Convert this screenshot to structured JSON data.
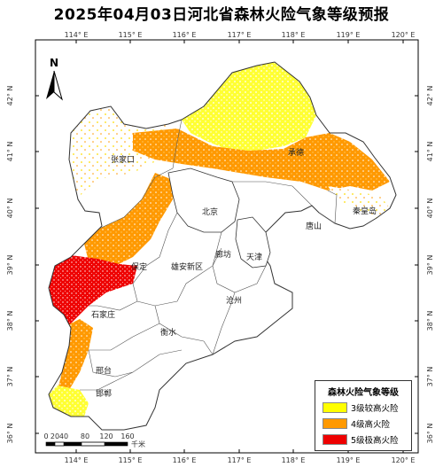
{
  "title": "2025年04月03日河北省森林火险气象等级预报",
  "lon_ticks": [
    "114° E",
    "115° E",
    "116° E",
    "117° E",
    "118° E",
    "119° E",
    "120° E"
  ],
  "lat_ticks": [
    "42° N",
    "41° N",
    "40° N",
    "39° N",
    "38° N",
    "37° N",
    "36° N"
  ],
  "north_label": "N",
  "cities": {
    "zhangjiakou": "张家口",
    "chengde": "承德",
    "beijing": "北京",
    "qinhuangdao": "秦皇岛",
    "tangshan": "唐山",
    "tianjin": "天津",
    "langfang": "廊坊",
    "baoding": "保定",
    "xiongan": "雄安新区",
    "cangzhou": "沧州",
    "shijiazhuang": "石家庄",
    "hengshui": "衡水",
    "xingtai": "邢台",
    "handan": "邯郸"
  },
  "scale": {
    "labels": [
      "0",
      "20",
      "40",
      "80",
      "120",
      "160"
    ],
    "unit": "千米"
  },
  "legend": {
    "title": "森林火险气象等级",
    "items": [
      {
        "label": "3级较高火险",
        "color": "#ffff00"
      },
      {
        "label": "4级高火险",
        "color": "#ff9900"
      },
      {
        "label": "5级极高火险",
        "color": "#ee0000"
      }
    ]
  }
}
